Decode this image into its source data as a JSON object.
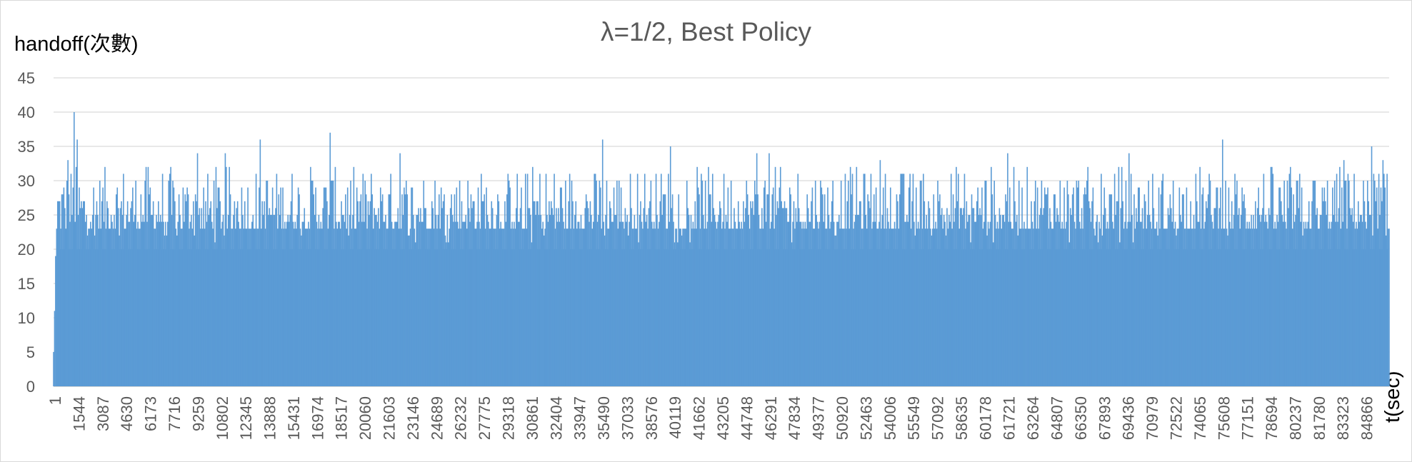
{
  "chart_data": {
    "type": "bar",
    "title": "λ=1/2, Best Policy",
    "ylabel": "handoff(次數)",
    "xlabel": "t(sec)",
    "ylim": [
      0,
      45
    ],
    "yticks": [
      0,
      5,
      10,
      15,
      20,
      25,
      30,
      35,
      40,
      45
    ],
    "xticks": [
      "1",
      "1544",
      "3087",
      "4630",
      "6173",
      "7716",
      "9259",
      "10802",
      "12345",
      "13888",
      "15431",
      "16974",
      "18517",
      "20060",
      "21603",
      "23146",
      "24689",
      "26232",
      "27775",
      "29318",
      "30861",
      "32404",
      "33947",
      "35490",
      "37033",
      "38576",
      "40119",
      "41662",
      "43205",
      "44748",
      "46291",
      "47834",
      "49377",
      "50920",
      "52463",
      "54006",
      "55549",
      "57092",
      "58635",
      "60178",
      "61721",
      "63264",
      "64807",
      "66350",
      "67893",
      "69436",
      "70979",
      "72522",
      "74065",
      "75608",
      "77151",
      "78694",
      "80237",
      "81780",
      "83323",
      "84866"
    ],
    "x_start": 1,
    "x_end": 86400,
    "grid": true,
    "series": [
      {
        "color": "#5b9bd5",
        "peaks": [
          {
            "x": 1350,
            "y": 40
          },
          {
            "x": 1540,
            "y": 36
          },
          {
            "x": 900,
            "y": 33
          },
          {
            "x": 13400,
            "y": 36
          },
          {
            "x": 17900,
            "y": 37
          },
          {
            "x": 11100,
            "y": 34
          },
          {
            "x": 9300,
            "y": 34
          },
          {
            "x": 22400,
            "y": 34
          },
          {
            "x": 35500,
            "y": 36
          },
          {
            "x": 39900,
            "y": 35
          },
          {
            "x": 45500,
            "y": 34
          },
          {
            "x": 46300,
            "y": 34
          },
          {
            "x": 53500,
            "y": 33
          },
          {
            "x": 61700,
            "y": 34
          },
          {
            "x": 69600,
            "y": 34
          },
          {
            "x": 75600,
            "y": 36
          },
          {
            "x": 83500,
            "y": 33
          },
          {
            "x": 85300,
            "y": 35
          },
          {
            "x": 86000,
            "y": 33
          }
        ],
        "base_level": 23,
        "typical_max": 31
      }
    ]
  }
}
